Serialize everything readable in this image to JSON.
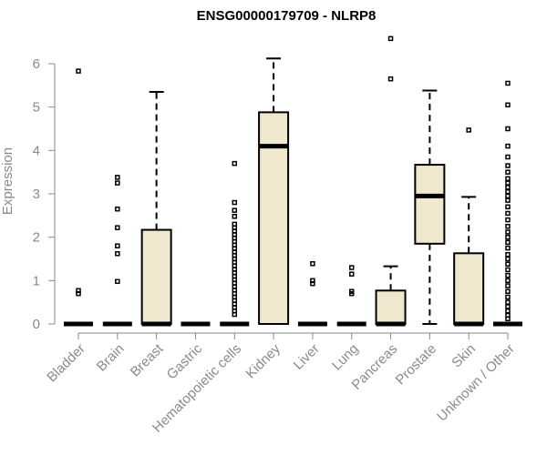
{
  "chart_data": {
    "type": "boxplot",
    "title": "ENSG00000179709 - NLRP8",
    "xlabel": "",
    "ylabel": "Expression",
    "ylim": [
      0,
      6.8
    ],
    "yticks": [
      0,
      1,
      2,
      3,
      4,
      5,
      6
    ],
    "colors": {
      "box_fill": "#efe8cf",
      "stroke": "#000000",
      "axis": "#8a8a8a"
    },
    "categories": [
      "Bladder",
      "Brain",
      "Breast",
      "Gastric",
      "Hematopoietic cells",
      "Kidney",
      "Liver",
      "Lung",
      "Pancreas",
      "Prostate",
      "Skin",
      "Unknown / Other"
    ],
    "boxes": [
      {
        "min": 0,
        "q1": 0,
        "median": 0,
        "q3": 0,
        "max": 0,
        "outliers": [
          0.7,
          0.77,
          5.83
        ]
      },
      {
        "min": 0,
        "q1": 0,
        "median": 0,
        "q3": 0,
        "max": 0,
        "outliers": [
          0.98,
          1.62,
          1.8,
          2.22,
          2.65,
          3.25,
          3.38
        ]
      },
      {
        "min": 0,
        "q1": 0,
        "median": 0,
        "q3": 2.17,
        "max": 5.35,
        "outliers": []
      },
      {
        "min": 0,
        "q1": 0,
        "median": 0,
        "q3": 0,
        "max": 0,
        "outliers": []
      },
      {
        "min": 0,
        "q1": 0,
        "median": 0,
        "q3": 0,
        "max": 0,
        "outliers": [
          0.22,
          0.3,
          0.38,
          0.46,
          0.54,
          0.62,
          0.7,
          0.78,
          0.86,
          0.94,
          1.02,
          1.1,
          1.18,
          1.26,
          1.34,
          1.42,
          1.5,
          1.58,
          1.66,
          1.74,
          1.82,
          1.9,
          1.98,
          2.06,
          2.14,
          2.22,
          2.3,
          2.48,
          2.62,
          2.8,
          3.7
        ]
      },
      {
        "min": 0,
        "q1": 0,
        "median": 4.1,
        "q3": 4.88,
        "max": 6.12,
        "outliers": []
      },
      {
        "min": 0,
        "q1": 0,
        "median": 0,
        "q3": 0,
        "max": 0,
        "outliers": [
          0.93,
          1.0,
          1.39
        ]
      },
      {
        "min": 0,
        "q1": 0,
        "median": 0,
        "q3": 0,
        "max": 0,
        "outliers": [
          0.7,
          0.75,
          1.15,
          1.3
        ]
      },
      {
        "min": 0,
        "q1": 0,
        "median": 0,
        "q3": 0.77,
        "max": 1.33,
        "outliers": [
          5.65,
          6.58
        ]
      },
      {
        "min": 0,
        "q1": 1.85,
        "median": 2.95,
        "q3": 3.67,
        "max": 5.38,
        "outliers": []
      },
      {
        "min": 0,
        "q1": 0,
        "median": 0,
        "q3": 1.63,
        "max": 2.93,
        "outliers": [
          4.47
        ]
      },
      {
        "min": 0,
        "q1": 0,
        "median": 0,
        "q3": 0,
        "max": 0,
        "outliers": [
          0.12,
          0.2,
          0.3,
          0.4,
          0.5,
          0.62,
          0.75,
          0.88,
          1.0,
          1.12,
          1.25,
          1.38,
          1.5,
          1.6,
          1.75,
          1.88,
          2.0,
          2.12,
          2.25,
          2.4,
          2.55,
          2.7,
          2.85,
          2.95,
          3.05,
          3.15,
          3.25,
          3.35,
          3.5,
          3.65,
          3.85,
          4.1,
          4.5,
          5.05,
          5.55
        ]
      }
    ]
  }
}
